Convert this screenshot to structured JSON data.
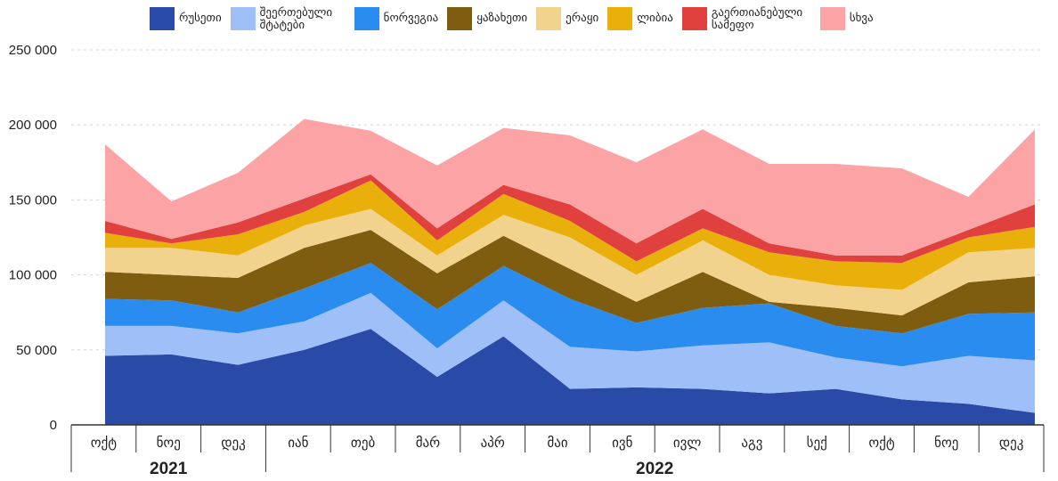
{
  "chart_data": {
    "type": "area",
    "stacked": true,
    "categories": [
      "ოქტ",
      "ნოე",
      "დეკ",
      "იან",
      "თებ",
      "მარ",
      "აპრ",
      "მაი",
      "ივნ",
      "ივლ",
      "აგვ",
      "სექ",
      "ოქტ",
      "ნოე",
      "დეკ"
    ],
    "years": [
      {
        "label": "2021",
        "start": 0,
        "end": 2
      },
      {
        "label": "2022",
        "start": 3,
        "end": 14
      }
    ],
    "y_ticks": [
      "0",
      "50 000",
      "100 000",
      "150 000",
      "200 000",
      "250 000"
    ],
    "ylim": [
      0,
      250000
    ],
    "grid": true,
    "legend_position": "top",
    "series": [
      {
        "name": "რუსეთი",
        "color": "#2a4aa8",
        "values": [
          46000,
          47000,
          40000,
          50000,
          64000,
          32000,
          59000,
          24000,
          25000,
          24000,
          21000,
          24000,
          17000,
          14000,
          8000
        ]
      },
      {
        "name": "შეერთებული შტატები",
        "color": "#9ebff7",
        "values": [
          20000,
          19000,
          21000,
          19000,
          24000,
          19000,
          24000,
          28000,
          24000,
          29000,
          34000,
          21000,
          22000,
          32000,
          35000
        ]
      },
      {
        "name": "ნორვეგია",
        "color": "#2b8cf0",
        "values": [
          18000,
          17000,
          14000,
          22000,
          20000,
          26000,
          23000,
          32000,
          19000,
          25000,
          26000,
          21000,
          22000,
          28000,
          32000
        ]
      },
      {
        "name": "ყაზახეთი",
        "color": "#7e5c10",
        "values": [
          18000,
          17000,
          23000,
          27000,
          22000,
          24000,
          20000,
          20000,
          14000,
          24000,
          1000,
          12000,
          12000,
          21000,
          24000
        ]
      },
      {
        "name": "ერაყი",
        "color": "#f2d38e",
        "values": [
          16000,
          18000,
          15000,
          15000,
          14000,
          12000,
          14000,
          21000,
          18000,
          21000,
          18000,
          15000,
          17000,
          20000,
          19000
        ]
      },
      {
        "name": "ლიბია",
        "color": "#e9b00c",
        "values": [
          10000,
          3000,
          14000,
          9000,
          19000,
          10000,
          14000,
          11000,
          9000,
          8000,
          15000,
          16000,
          18000,
          10000,
          14000
        ]
      },
      {
        "name": "გაერთიანებული სამეფო",
        "color": "#e0413f",
        "values": [
          8000,
          3000,
          8000,
          9000,
          4000,
          8000,
          6000,
          11000,
          12000,
          13000,
          6000,
          4000,
          5000,
          5000,
          15000
        ]
      },
      {
        "name": "სხვა",
        "color": "#fca3a5",
        "values": [
          51000,
          25000,
          33000,
          53000,
          29000,
          42000,
          38000,
          46000,
          54000,
          53000,
          53000,
          61000,
          58000,
          22000,
          50000
        ]
      }
    ]
  }
}
